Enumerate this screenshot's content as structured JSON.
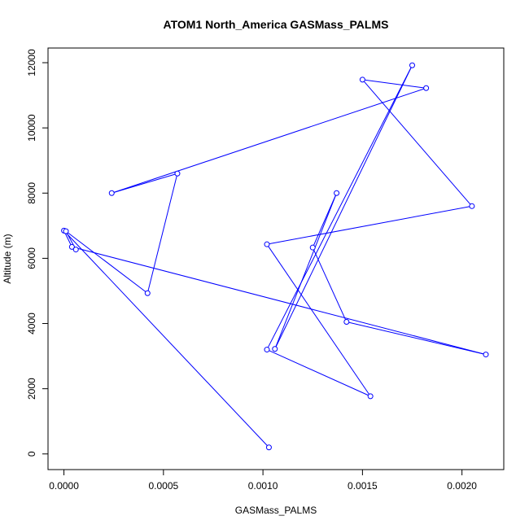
{
  "chart_data": {
    "type": "scatter",
    "title": "ATOM1 North_America GASMass_PALMS",
    "xlabel": "GASMass_PALMS",
    "ylabel": "Altitude (m)",
    "xlim": [
      -8e-05,
      0.00221
    ],
    "ylim": [
      -480,
      12450
    ],
    "xticks": [
      0.0,
      0.0005,
      0.001,
      0.0015,
      0.002
    ],
    "xtick_labels": [
      "0.0000",
      "0.0005",
      "0.0010",
      "0.0015",
      "0.0020"
    ],
    "yticks": [
      0,
      2000,
      4000,
      6000,
      8000,
      10000,
      12000
    ],
    "ytick_labels": [
      "0",
      "2000",
      "4000",
      "6000",
      "8000",
      "10000",
      "12000"
    ],
    "grid": false,
    "series": [
      {
        "color": "#0000ff",
        "mode": "lines+markers",
        "x": [
          0.00103,
          0.0,
          4e-05,
          0.00212,
          0.00142,
          0.00125,
          0.00137,
          0.00106,
          0.00175,
          0.00102,
          0.00154,
          0.00102,
          0.00205,
          0.0015,
          0.00182,
          0.00024,
          0.00057,
          0.00042,
          1e-05,
          6e-05
        ],
        "y": [
          200,
          6850,
          6350,
          3050,
          4050,
          6330,
          8000,
          3220,
          11920,
          3200,
          1770,
          6430,
          7600,
          11480,
          11220,
          8000,
          8600,
          4930,
          6830,
          6270
        ]
      }
    ]
  }
}
